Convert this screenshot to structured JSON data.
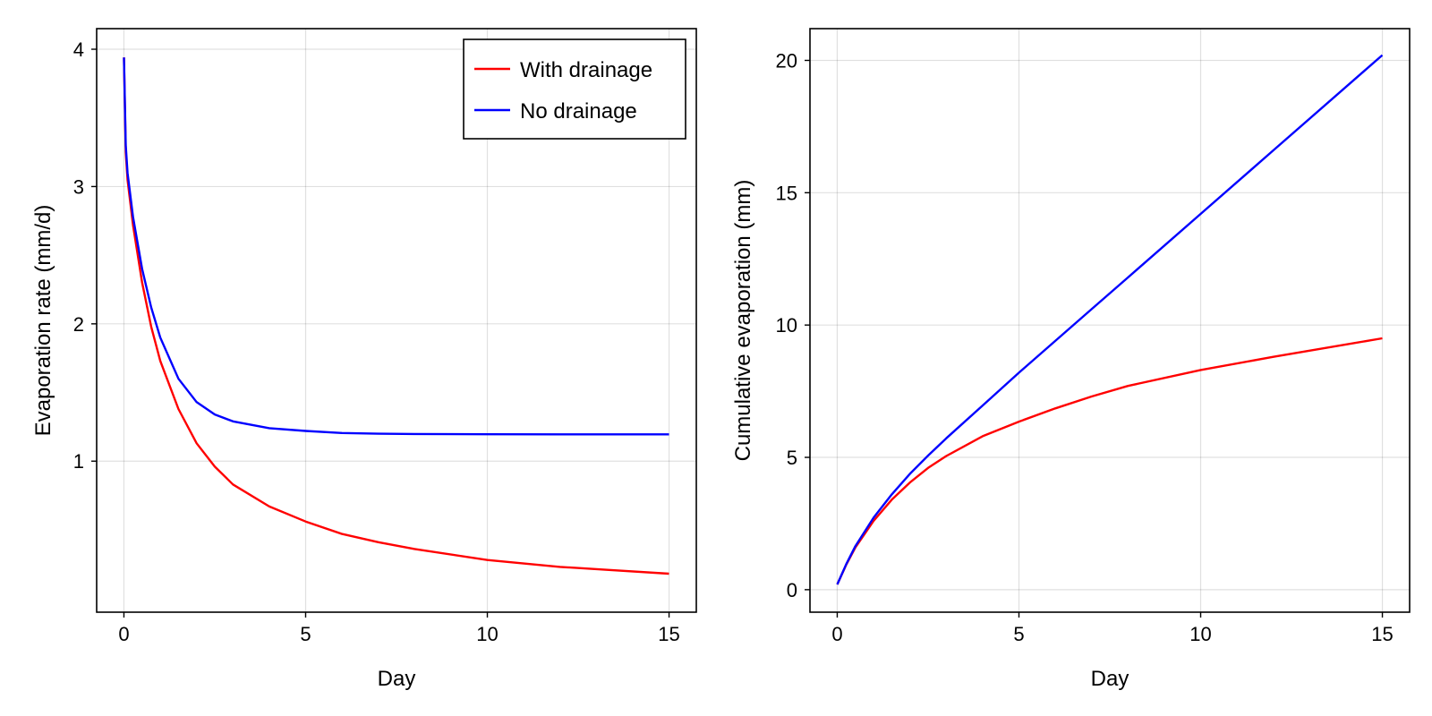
{
  "chart_data": [
    {
      "type": "line",
      "title": "",
      "xlabel": "Day",
      "ylabel": "Evaporation rate (mm/d)",
      "xlim": [
        -0.75,
        15.75
      ],
      "ylim": [
        -0.1,
        4.15
      ],
      "xticks": [
        0,
        5,
        10,
        15
      ],
      "xtick_labels": [
        "0",
        "5",
        "10",
        "15"
      ],
      "yticks": [
        1,
        2,
        3,
        4
      ],
      "ytick_labels": [
        "1",
        "2",
        "3",
        "4"
      ],
      "grid": true,
      "legend": {
        "placement": "top-right",
        "entries": [
          "With drainage",
          "No drainage"
        ]
      },
      "x": [
        0,
        0.05,
        0.1,
        0.25,
        0.5,
        0.75,
        1,
        1.5,
        2,
        2.5,
        3,
        4,
        5,
        6,
        7,
        8,
        10,
        12,
        15
      ],
      "series": [
        {
          "name": "With drainage",
          "color": "#ff0000",
          "values": [
            3.94,
            3.25,
            3.05,
            2.72,
            2.3,
            1.98,
            1.73,
            1.38,
            1.13,
            0.96,
            0.83,
            0.67,
            0.56,
            0.47,
            0.41,
            0.36,
            0.28,
            0.23,
            0.18
          ]
        },
        {
          "name": "No drainage",
          "color": "#0000ff",
          "values": [
            3.94,
            3.3,
            3.1,
            2.78,
            2.4,
            2.12,
            1.9,
            1.6,
            1.43,
            1.34,
            1.29,
            1.24,
            1.22,
            1.205,
            1.2,
            1.198,
            1.196,
            1.195,
            1.195
          ]
        }
      ]
    },
    {
      "type": "line",
      "title": "",
      "xlabel": "Day",
      "ylabel": "Cumulative evaporation (mm)",
      "xlim": [
        -0.75,
        15.75
      ],
      "ylim": [
        -0.85,
        21.2
      ],
      "xticks": [
        0,
        5,
        10,
        15
      ],
      "xtick_labels": [
        "0",
        "5",
        "10",
        "15"
      ],
      "yticks": [
        0,
        5,
        10,
        15,
        20
      ],
      "ytick_labels": [
        "0",
        "5",
        "10",
        "15",
        "20"
      ],
      "grid": true,
      "x": [
        0,
        0.25,
        0.5,
        1,
        1.5,
        2,
        2.5,
        3,
        4,
        5,
        6,
        7,
        8,
        10,
        12,
        15
      ],
      "series": [
        {
          "name": "With drainage",
          "color": "#ff0000",
          "values": [
            0.2,
            0.95,
            1.6,
            2.6,
            3.4,
            4.05,
            4.6,
            5.05,
            5.8,
            6.35,
            6.85,
            7.3,
            7.7,
            8.3,
            8.8,
            9.5
          ]
        },
        {
          "name": "No drainage",
          "color": "#0000ff",
          "values": [
            0.2,
            0.97,
            1.65,
            2.72,
            3.6,
            4.38,
            5.07,
            5.72,
            6.96,
            8.2,
            9.4,
            10.6,
            11.8,
            14.2,
            16.6,
            20.2
          ]
        }
      ]
    }
  ]
}
